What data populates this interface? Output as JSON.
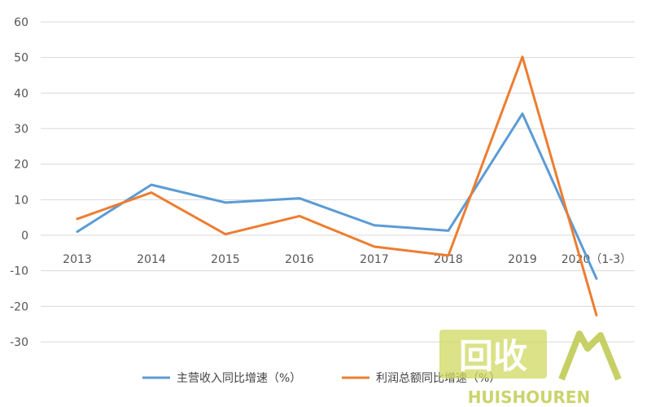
{
  "chart_data": {
    "type": "line",
    "categories": [
      "2013",
      "2014",
      "2015",
      "2016",
      "2017",
      "2018",
      "2019",
      "2020（1-3）"
    ],
    "series": [
      {
        "name": "主营收入同比增速（%）",
        "color": "#5B9BD5",
        "values": [
          1,
          14.2,
          9.2,
          10.4,
          2.8,
          1.3,
          34.2,
          -12.2
        ]
      },
      {
        "name": "利润总额同比增速（%）",
        "color": "#ED7D31",
        "values": [
          4.6,
          12.0,
          0.3,
          5.4,
          -3.2,
          -5.7,
          50.2,
          -22.5
        ]
      }
    ],
    "ylim": [
      -30,
      60
    ],
    "yticks": [
      60,
      50,
      40,
      30,
      20,
      10,
      0,
      -10,
      -20,
      -30
    ],
    "grid": true,
    "legend_position": "bottom",
    "title": "",
    "xlabel": "",
    "ylabel": ""
  },
  "watermark": {
    "logo_text": "回收",
    "brand_text": "HUISHOUREN"
  }
}
